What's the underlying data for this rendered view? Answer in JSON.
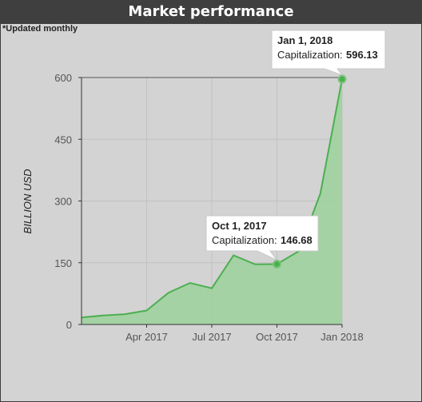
{
  "header": {
    "title": "Market performance"
  },
  "note": "*Updated monthly",
  "colors": {
    "line": "#4caf50",
    "area": "#9fd19f",
    "header_bg": "#3f3f3f",
    "background": "#d3d3d3"
  },
  "chart_data": {
    "type": "area",
    "title": "Market performance",
    "ylabel": "BILLION USD",
    "xlabel": "",
    "ylim": [
      0,
      600
    ],
    "yticks": [
      0,
      150,
      300,
      450,
      600
    ],
    "xticks": [
      {
        "label": "Apr 2017",
        "x": 3
      },
      {
        "label": "Jul 2017",
        "x": 6
      },
      {
        "label": "Oct 2017",
        "x": 9
      },
      {
        "label": "Jan 2018",
        "x": 12
      }
    ],
    "grid": true,
    "series": [
      {
        "x": [
          0,
          1,
          2,
          3,
          4,
          5,
          6,
          7,
          8,
          9,
          10,
          11,
          12
        ],
        "values": [
          17,
          22,
          25,
          34,
          77,
          101,
          88,
          168,
          146,
          146.68,
          178,
          318,
          596.13
        ]
      }
    ],
    "tooltips": [
      {
        "date": "Oct 1, 2017",
        "label": "Capitalization:",
        "value": "146.68",
        "x": 9,
        "y": 146.68
      },
      {
        "date": "Jan 1, 2018",
        "label": "Capitalization:",
        "value": "596.13",
        "x": 12,
        "y": 596.13
      }
    ]
  }
}
